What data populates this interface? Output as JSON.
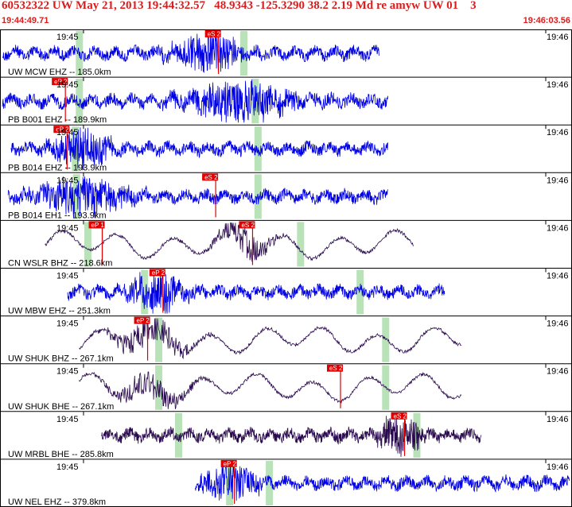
{
  "header": {
    "title": "60532322 UW May 21, 2013 19:44:32.57   48.9343 -125.3290 38.2 2.19 Md re amyw UW 01    3",
    "start_time": "19:44:49.71",
    "end_time": "19:46:03.56"
  },
  "colors": {
    "header_red": "#d81e1e",
    "trace_blue": "#0000e6",
    "trace_purple": "#2a0a4e",
    "pick_red": "#e00000",
    "window_green": "#b9e2b9"
  },
  "tick_left": "19:45",
  "tick_right": "19:46",
  "traces": [
    {
      "label": "UW MCW EHZ -- 185.0km",
      "color": "blue",
      "phases": [
        {
          "text": "eS 2",
          "pos": 0.36
        }
      ],
      "windows": [
        0.135,
        0.425
      ]
    },
    {
      "label": "PB B001 EHZ -- 189.9km",
      "color": "blue",
      "phases": [
        {
          "text": "eP 2",
          "pos": 0.09
        }
      ],
      "windows": [
        0.135,
        0.445
      ]
    },
    {
      "label": "PB B014 EHZ -- 193.9km",
      "color": "blue",
      "phases": [
        {
          "text": "eP 2",
          "pos": 0.093
        }
      ],
      "windows": [
        0.128,
        0.45
      ]
    },
    {
      "label": "PB B014 EH1 -- 193.9km",
      "color": "blue",
      "phases": [
        {
          "text": "eS 2",
          "pos": 0.355
        }
      ],
      "windows": [
        0.13,
        0.45
      ]
    },
    {
      "label": "CN WSLR BHZ -- 218.6km",
      "color": "purple",
      "phases": [
        {
          "text": "eP 1",
          "pos": 0.155
        },
        {
          "text": "eS 2",
          "pos": 0.42
        }
      ],
      "windows": [
        0.15,
        0.525
      ]
    },
    {
      "label": "UW MBW EHZ -- 251.3km",
      "color": "blue",
      "phases": [
        {
          "text": "eP 2",
          "pos": 0.262
        }
      ],
      "windows": [
        0.25,
        0.63
      ]
    },
    {
      "label": "UW SHUK BHZ -- 267.1km",
      "color": "purple",
      "phases": [
        {
          "text": "eP 2",
          "pos": 0.235
        }
      ],
      "windows": [
        0.275,
        0.675
      ]
    },
    {
      "label": "UW SHUK BHE -- 267.1km",
      "color": "purple",
      "phases": [
        {
          "text": "eS 2",
          "pos": 0.575
        }
      ],
      "windows": [
        0.275,
        0.675
      ]
    },
    {
      "label": "UW MRBL BHE -- 285.8km",
      "color": "purple",
      "phases": [
        {
          "text": "eS 2",
          "pos": 0.688
        }
      ],
      "windows": [
        0.31,
        0.73
      ]
    },
    {
      "label": "UW NEL EHZ -- 379.8km",
      "color": "blue",
      "phases": [
        {
          "text": "eP 2",
          "pos": 0.388
        }
      ],
      "windows": [
        0.4,
        0.47
      ]
    }
  ]
}
